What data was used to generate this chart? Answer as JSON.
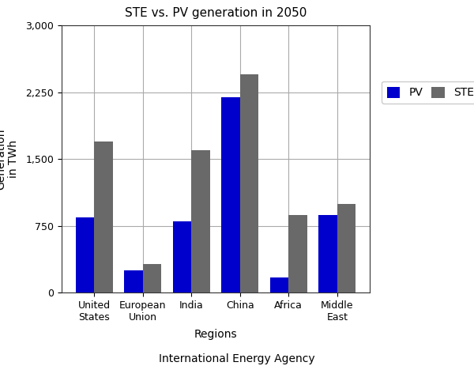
{
  "title": "STE vs. PV generation in 2050",
  "xlabel": "Regions",
  "ylabel": "Generation\nin TWh",
  "caption": "International Energy Agency",
  "categories": [
    "United\nStates",
    "European\nUnion",
    "India",
    "China",
    "Africa",
    "Middle\nEast"
  ],
  "pv_values": [
    850,
    250,
    800,
    2200,
    175,
    875
  ],
  "ste_values": [
    1700,
    320,
    1600,
    2450,
    875,
    1000
  ],
  "pv_color": "#0000cc",
  "ste_color": "#696969",
  "ylim": [
    0,
    3000
  ],
  "yticks": [
    0,
    750,
    1500,
    2250,
    3000
  ],
  "ytick_labels": [
    "0",
    "750",
    "1,500",
    "2,250",
    "3,000"
  ],
  "bar_width": 0.38,
  "legend_labels": [
    "PV",
    "STE"
  ],
  "background_color": "#ffffff",
  "grid_color": "#aaaaaa",
  "title_fontsize": 11,
  "axis_label_fontsize": 10,
  "tick_fontsize": 9,
  "caption_fontsize": 10
}
